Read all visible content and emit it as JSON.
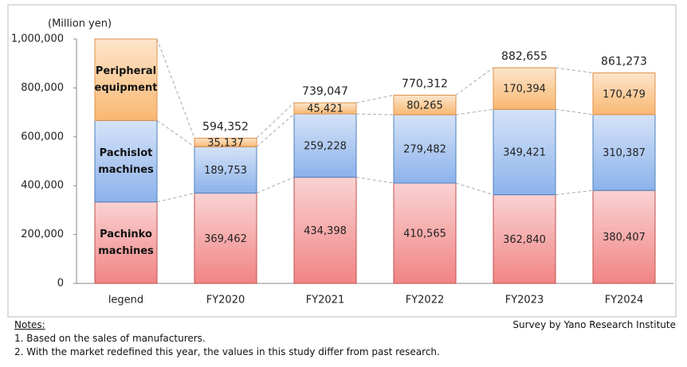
{
  "chart_data": {
    "type": "stacked-bar",
    "y_label": "(Million  yen)",
    "categories": [
      "legend",
      "FY2020",
      "FY2021",
      "FY2022",
      "FY2023",
      "FY2024"
    ],
    "series": [
      {
        "name": "Pachinko machines",
        "color": "#f07e7e",
        "border": "#c0504d",
        "values": [
          null,
          369462,
          434398,
          410565,
          362840,
          380407
        ],
        "value_labels": [
          null,
          "369,462",
          "434,398",
          "410,565",
          "362,840",
          "380,407"
        ]
      },
      {
        "name": "Pachislot machines",
        "color": "#86aeea",
        "border": "#4f81bd",
        "values": [
          null,
          189753,
          259228,
          279482,
          349421,
          310387
        ],
        "value_labels": [
          null,
          "189,753",
          "259,228",
          "279,482",
          "349,421",
          "310,387"
        ]
      },
      {
        "name": "Peripheral equipment",
        "color": "#f8b46a",
        "border": "#e0914a",
        "values": [
          null,
          35137,
          45421,
          80265,
          170394,
          170479
        ],
        "value_labels": [
          null,
          "35,137",
          "45,421",
          "80,265",
          "170,394",
          "170,479"
        ]
      }
    ],
    "totals": [
      null,
      594352,
      739047,
      770312,
      882655,
      861273
    ],
    "total_labels": [
      null,
      "594,352",
      "739,047",
      "770,312",
      "882,655",
      "861,273"
    ],
    "ylim": [
      0,
      1000000
    ],
    "yticks": [
      0,
      {
        "value": 200000,
        "label": "200,000"
      },
      {
        "value": 400000,
        "label": "400,000"
      },
      {
        "value": 600000,
        "label": "600,000"
      },
      {
        "value": 800000,
        "label": "800,000"
      },
      {
        "value": 1000000,
        "label": "1,000,000"
      }
    ],
    "grid": false,
    "notes_title": "Notes:",
    "notes": [
      "1.  Based on the sales of manufacturers.",
      "2.  With the market redefined this year, the values in this study differ from past research."
    ],
    "source": "Survey by Yano Research Institute"
  }
}
